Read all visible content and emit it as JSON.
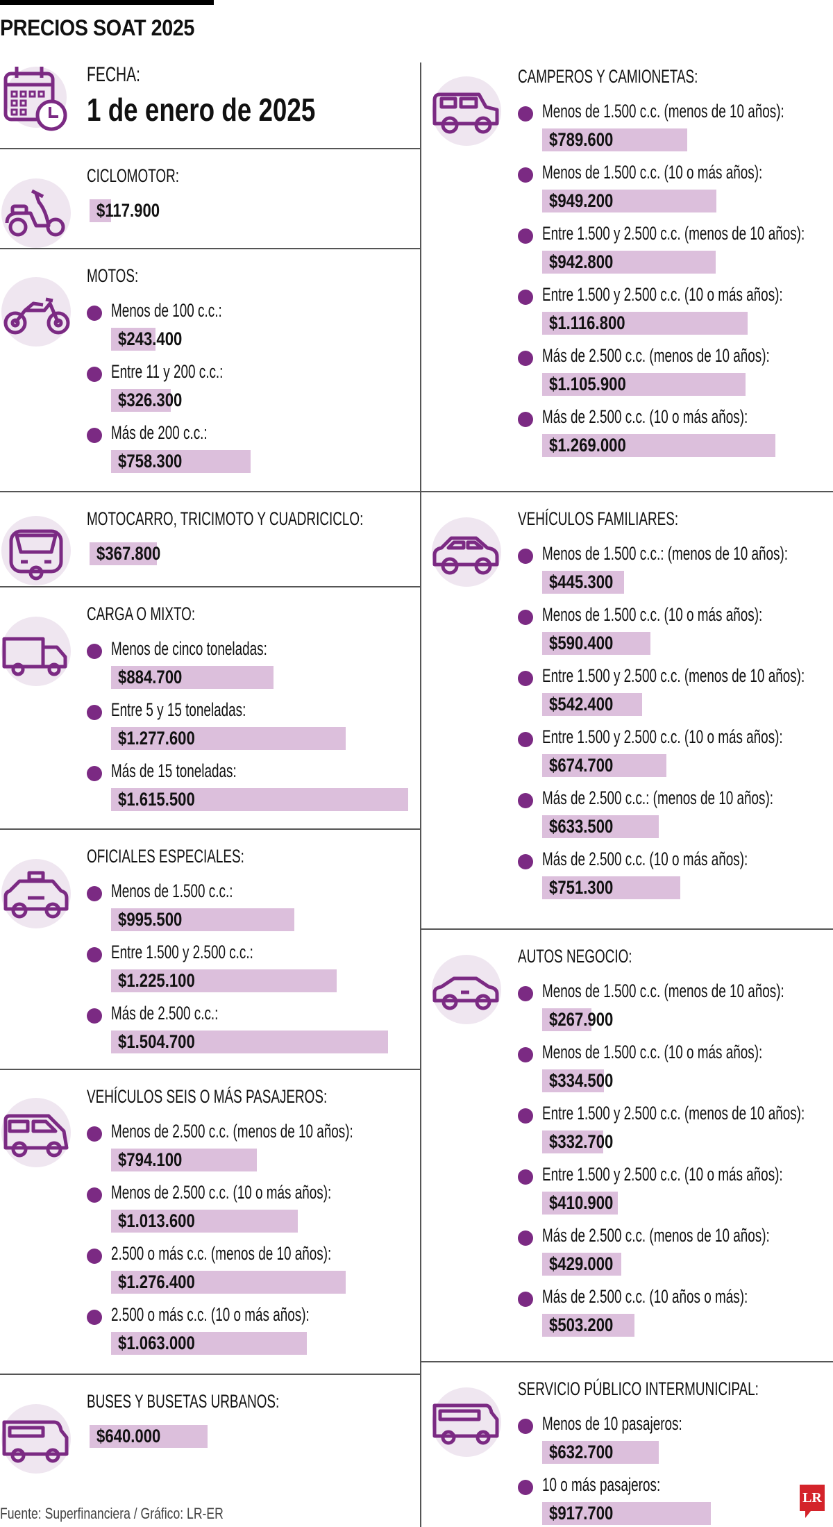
{
  "title": "PRECIOS SOAT 2025",
  "colors": {
    "accent": "#7b2a83",
    "bar": "#dcbfdc",
    "icon_bg": "#efe6f0",
    "logo": "#d4232a"
  },
  "date": {
    "label": "FECHA:",
    "value": "1 de enero de 2025",
    "icon": "calendar-clock-icon"
  },
  "sections": [
    {
      "id": "ciclomotor",
      "icon": "scooter-icon",
      "header": "CICLOMOTOR:",
      "items": [
        {
          "price": "$117.900",
          "value": 117900
        }
      ]
    },
    {
      "id": "motos",
      "icon": "motorcycle-icon",
      "header": "MOTOS:",
      "items": [
        {
          "label": "Menos de 100 c.c.:",
          "price": "$243.400",
          "value": 243400
        },
        {
          "label": "Entre 11 y 200 c.c.:",
          "price": "$326.300",
          "value": 326300
        },
        {
          "label": "Más de 200 c.c.:",
          "price": "$758.300",
          "value": 758300
        }
      ]
    },
    {
      "id": "motocarro",
      "icon": "motocarro-icon",
      "header": "MOTOCARRO, TRICIMOTO Y CUADRICICLO:",
      "items": [
        {
          "price": "$367.800",
          "value": 367800
        }
      ]
    },
    {
      "id": "carga",
      "icon": "truck-icon",
      "header": "CARGA O MIXTO:",
      "items": [
        {
          "label": "Menos de cinco toneladas:",
          "price": "$884.700",
          "value": 884700
        },
        {
          "label": "Entre 5 y 15 toneladas:",
          "price": "$1.277.600",
          "value": 1277600
        },
        {
          "label": "Más de 15 toneladas:",
          "price": "$1.615.500",
          "value": 1615500
        }
      ]
    },
    {
      "id": "oficiales",
      "icon": "taxi-icon",
      "header": "OFICIALES ESPECIALES:",
      "items": [
        {
          "label": "Menos de 1.500 c.c.:",
          "price": "$995.500",
          "value": 995500
        },
        {
          "label": "Entre 1.500 y 2.500 c.c.:",
          "price": "$1.225.100",
          "value": 1225100
        },
        {
          "label": "Más de 2.500 c.c.:",
          "price": "$1.504.700",
          "value": 1504700
        }
      ]
    },
    {
      "id": "seis",
      "icon": "van-icon",
      "header": "VEHÍCULOS SEIS O MÁS PASAJEROS:",
      "items": [
        {
          "label": "Menos de 2.500 c.c. (menos de 10 años):",
          "price": "$794.100",
          "value": 794100
        },
        {
          "label": "Menos de 2.500 c.c. (10 o más años):",
          "price": "$1.013.600",
          "value": 1013600
        },
        {
          "label": "2.500 o más c.c. (menos de 10 años):",
          "price": "$1.276.400",
          "value": 1276400
        },
        {
          "label": "2.500 o más c.c. (10 o más años):",
          "price": "$1.063.000",
          "value": 1063000
        }
      ]
    },
    {
      "id": "buses",
      "icon": "bus-icon",
      "header": "BUSES Y BUSETAS URBANOS:",
      "items": [
        {
          "price": "$640.000",
          "value": 640000
        }
      ]
    },
    {
      "id": "camperos",
      "icon": "jeep-icon",
      "header": "CAMPEROS Y CAMIONETAS:",
      "items": [
        {
          "label": "Menos de 1.500 c.c. (menos de 10 años):",
          "price": "$789.600",
          "value": 789600
        },
        {
          "label": "Menos de 1.500 c.c. (10 o más años):",
          "price": "$949.200",
          "value": 949200
        },
        {
          "label": "Entre 1.500 y 2.500 c.c. (menos de 10 años):",
          "price": "$942.800",
          "value": 942800
        },
        {
          "label": "Entre 1.500 y 2.500 c.c. (10 o más años):",
          "price": "$1.116.800",
          "value": 1116800
        },
        {
          "label": "Más de 2.500 c.c. (menos de 10 años):",
          "price": "$1.105.900",
          "value": 1105900
        },
        {
          "label": "Más de 2.500 c.c. (10 o más años):",
          "price": "$1.269.000",
          "value": 1269000
        }
      ]
    },
    {
      "id": "familiares",
      "icon": "car-icon",
      "header": "VEHÍCULOS FAMILIARES:",
      "items": [
        {
          "label": "Menos de 1.500 c.c.: (menos de 10 años):",
          "price": "$445.300",
          "value": 445300
        },
        {
          "label": "Menos de 1.500 c.c. (10 o más años):",
          "price": "$590.400",
          "value": 590400
        },
        {
          "label": "Entre 1.500 y 2.500 c.c. (menos de 10 años):",
          "price": "$542.400",
          "value": 542400
        },
        {
          "label": "Entre 1.500 y 2.500 c.c. (10 o más años):",
          "price": "$674.700",
          "value": 674700
        },
        {
          "label": "Más de 2.500 c.c.: (menos de 10 años):",
          "price": "$633.500",
          "value": 633500
        },
        {
          "label": "Más de 2.500 c.c. (10 o más años):",
          "price": "$751.300",
          "value": 751300
        }
      ]
    },
    {
      "id": "negocio",
      "icon": "sedan-icon",
      "header": "AUTOS NEGOCIO:",
      "items": [
        {
          "label": "Menos de 1.500 c.c. (menos de 10 años):",
          "price": "$267.900",
          "value": 267900
        },
        {
          "label": "Menos de 1.500 c.c. (10 o más años):",
          "price": "$334.500",
          "value": 334500
        },
        {
          "label": "Entre 1.500 y 2.500 c.c. (menos de 10 años):",
          "price": "$332.700",
          "value": 332700
        },
        {
          "label": "Entre 1.500 y 2.500 c.c. (10 o más años):",
          "price": "$410.900",
          "value": 410900
        },
        {
          "label": "Más de 2.500 c.c. (menos de 10 años):",
          "price": "$429.000",
          "value": 429000
        },
        {
          "label": "Más de 2.500 c.c. (10 años o más):",
          "price": "$503.200",
          "value": 503200
        }
      ]
    },
    {
      "id": "intermunicipal",
      "icon": "coach-bus-icon",
      "header": "SERVICIO PÚBLICO INTERMUNICIPAL:",
      "items": [
        {
          "label": "Menos de 10 pasajeros:",
          "price": "$632.700",
          "value": 632700
        },
        {
          "label": "10 o más pasajeros:",
          "price": "$917.700",
          "value": 917700
        }
      ]
    }
  ],
  "footer": "Fuente: Superfinanciera / Gráfico: LR-ER",
  "logo": "LR"
}
